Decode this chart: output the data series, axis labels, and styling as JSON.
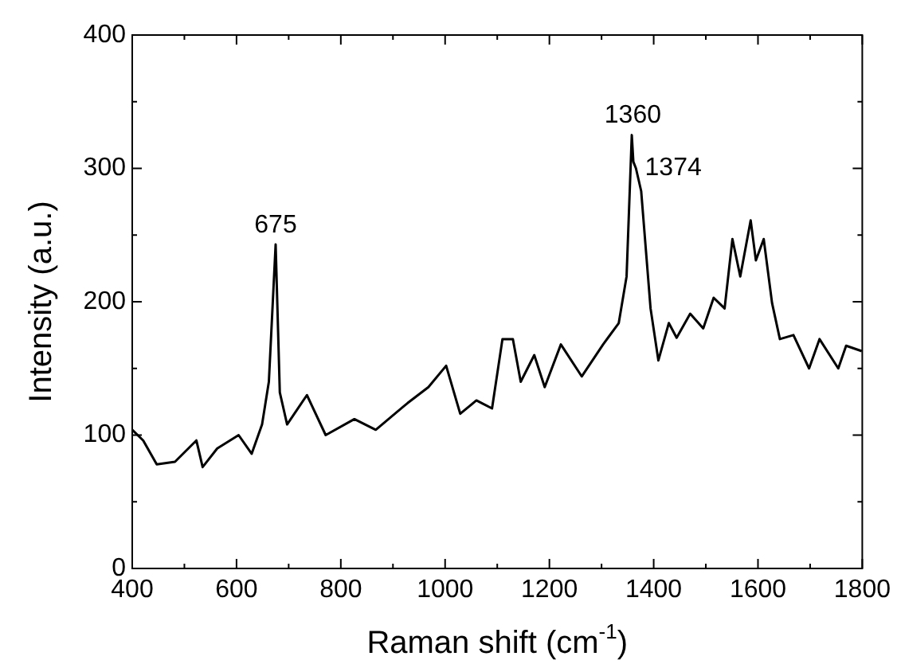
{
  "chart_data": {
    "type": "line",
    "xlabel": "Raman shift (cm$^{-1}$)",
    "ylabel": "Intensity (a.u.)",
    "x": [
      400,
      421,
      447,
      482,
      523,
      535,
      563,
      604,
      629,
      649,
      662,
      675,
      683,
      697,
      735,
      771,
      826,
      867,
      928,
      968,
      1002,
      1029,
      1060,
      1090,
      1110,
      1130,
      1145,
      1171,
      1191,
      1222,
      1262,
      1303,
      1333,
      1348,
      1358,
      1361,
      1366,
      1376,
      1394,
      1409,
      1429,
      1444,
      1470,
      1495,
      1515,
      1536,
      1551,
      1566,
      1586,
      1596,
      1611,
      1627,
      1642,
      1668,
      1698,
      1718,
      1754,
      1769,
      1799
    ],
    "series": [
      {
        "color": "#000000",
        "values": [
          104,
          96,
          78,
          80,
          96,
          76,
          90,
          100,
          86,
          108,
          140,
          243,
          132,
          108,
          130,
          100,
          112,
          104,
          124,
          136,
          152,
          116,
          126,
          120,
          172,
          172,
          140,
          160,
          136,
          168,
          144,
          168,
          184,
          219,
          325,
          305,
          300,
          283,
          195,
          156,
          184,
          173,
          191,
          180,
          203,
          195,
          247,
          219,
          261,
          231,
          247,
          199,
          172,
          175,
          150,
          172,
          150,
          167,
          163
        ]
      }
    ],
    "xlim": [
      400,
      1800
    ],
    "ylim": [
      0,
      400
    ],
    "xticks": [
      400,
      {
        "value": 500,
        "label": null
      },
      600,
      {
        "value": 700,
        "label": null
      },
      800,
      {
        "value": 900,
        "label": null
      },
      1000,
      {
        "value": 1100,
        "label": null
      },
      1200,
      {
        "value": 1300,
        "label": null
      },
      1400,
      {
        "value": 1500,
        "label": null
      },
      1600,
      {
        "value": 1700,
        "label": null
      },
      1800
    ],
    "yticks": [
      0,
      {
        "value": 50,
        "label": null
      },
      100,
      {
        "value": 150,
        "label": null
      },
      200,
      {
        "value": 250,
        "label": null
      },
      300,
      {
        "value": 350,
        "label": null
      },
      400
    ],
    "annotations": [
      {
        "text": "675",
        "x": 675,
        "y": 243
      },
      {
        "text": "1360",
        "x": 1360,
        "y": 325
      },
      {
        "text": "1374",
        "x": 1374,
        "y": 300
      }
    ],
    "grid": false,
    "legend": false,
    "marker": "none",
    "line_style": "solid"
  }
}
